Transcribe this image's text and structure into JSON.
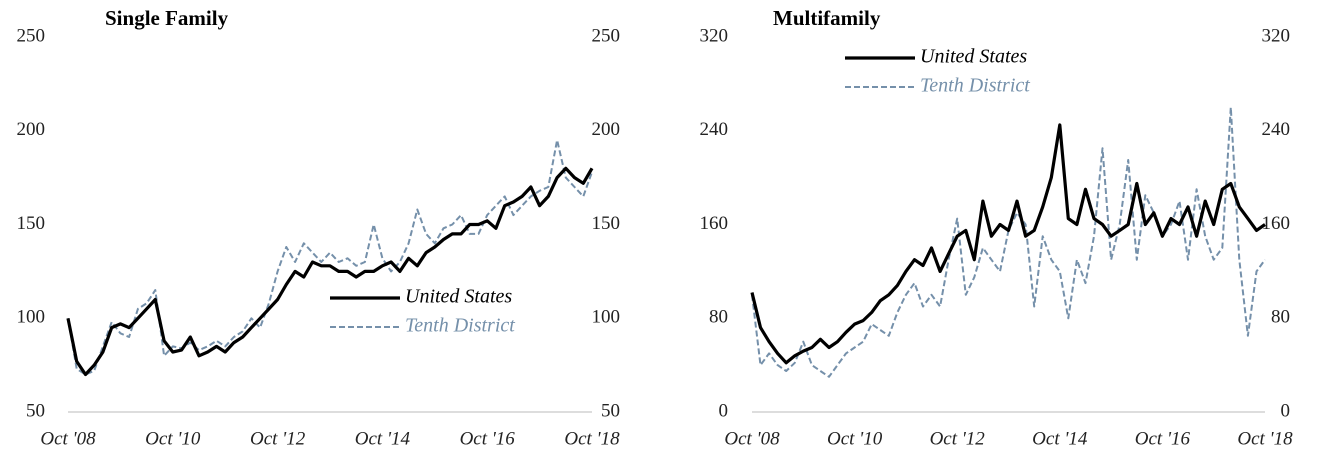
{
  "chart_data": [
    {
      "type": "line",
      "title": "Single Family",
      "categories": [
        "Oct '08",
        null,
        null,
        null,
        null,
        null,
        null,
        null,
        null,
        null,
        null,
        null,
        "Oct '10",
        null,
        null,
        null,
        null,
        null,
        null,
        null,
        null,
        null,
        null,
        null,
        "Oct '12",
        null,
        null,
        null,
        null,
        null,
        null,
        null,
        null,
        null,
        null,
        null,
        "Oct '14",
        null,
        null,
        null,
        null,
        null,
        null,
        null,
        null,
        null,
        null,
        null,
        "Oct '16",
        null,
        null,
        null,
        null,
        null,
        null,
        null,
        null,
        null,
        null,
        null,
        "Oct '18"
      ],
      "series": [
        {
          "name": "United States",
          "color": "#000000",
          "dash": false,
          "values": [
            100,
            77,
            70,
            75,
            82,
            95,
            97,
            95,
            100,
            105,
            110,
            88,
            82,
            83,
            90,
            80,
            82,
            85,
            82,
            87,
            90,
            95,
            100,
            105,
            110,
            118,
            125,
            122,
            130,
            128,
            128,
            125,
            125,
            122,
            125,
            125,
            128,
            130,
            125,
            132,
            128,
            135,
            138,
            142,
            145,
            145,
            150,
            150,
            152,
            148,
            160,
            162,
            165,
            170,
            160,
            165,
            175,
            180,
            175,
            172,
            180
          ]
        },
        {
          "name": "Tenth District",
          "color": "#7590aa",
          "dash": true,
          "values": [
            100,
            73,
            70,
            72,
            85,
            98,
            92,
            90,
            105,
            108,
            115,
            80,
            85,
            84,
            87,
            83,
            85,
            88,
            85,
            90,
            93,
            100,
            95,
            108,
            125,
            138,
            130,
            140,
            135,
            130,
            135,
            130,
            132,
            128,
            130,
            150,
            132,
            125,
            130,
            140,
            158,
            145,
            140,
            148,
            150,
            155,
            145,
            145,
            155,
            160,
            165,
            155,
            160,
            165,
            168,
            170,
            195,
            175,
            170,
            165,
            178
          ]
        }
      ],
      "ylim": [
        50,
        250
      ],
      "yticks": [
        50,
        100,
        150,
        200,
        250
      ],
      "y2lim": [
        50,
        250
      ],
      "y2ticks": [
        50,
        100,
        150,
        200,
        250
      ],
      "legend": "lower right",
      "grid": false
    },
    {
      "type": "line",
      "title": "Multifamily",
      "categories": [
        "Oct '08",
        null,
        null,
        null,
        null,
        null,
        null,
        null,
        null,
        null,
        null,
        null,
        "Oct '10",
        null,
        null,
        null,
        null,
        null,
        null,
        null,
        null,
        null,
        null,
        null,
        "Oct '12",
        null,
        null,
        null,
        null,
        null,
        null,
        null,
        null,
        null,
        null,
        null,
        "Oct '14",
        null,
        null,
        null,
        null,
        null,
        null,
        null,
        null,
        null,
        null,
        null,
        "Oct '16",
        null,
        null,
        null,
        null,
        null,
        null,
        null,
        null,
        null,
        null,
        null,
        "Oct '18"
      ],
      "series": [
        {
          "name": "United States",
          "color": "#000000",
          "dash": false,
          "values": [
            102,
            72,
            60,
            50,
            42,
            48,
            52,
            55,
            62,
            55,
            60,
            68,
            75,
            78,
            85,
            95,
            100,
            108,
            120,
            130,
            125,
            140,
            120,
            135,
            150,
            155,
            130,
            180,
            150,
            160,
            155,
            180,
            150,
            155,
            175,
            200,
            245,
            165,
            160,
            190,
            165,
            160,
            150,
            155,
            160,
            195,
            160,
            170,
            150,
            165,
            160,
            175,
            150,
            180,
            160,
            190,
            195,
            175,
            165,
            155,
            160
          ]
        },
        {
          "name": "Tenth District",
          "color": "#7590aa",
          "dash": true,
          "values": [
            100,
            40,
            50,
            40,
            35,
            42,
            60,
            40,
            35,
            30,
            40,
            50,
            55,
            60,
            75,
            70,
            65,
            85,
            100,
            110,
            90,
            100,
            90,
            130,
            165,
            100,
            115,
            140,
            130,
            120,
            155,
            170,
            160,
            90,
            150,
            130,
            120,
            80,
            130,
            110,
            150,
            225,
            130,
            160,
            215,
            130,
            185,
            170,
            150,
            160,
            180,
            130,
            190,
            150,
            130,
            140,
            260,
            130,
            65,
            120,
            130
          ]
        }
      ],
      "ylim": [
        0,
        320
      ],
      "yticks": [
        0,
        80,
        160,
        240,
        320
      ],
      "y2lim": [
        0,
        320
      ],
      "y2ticks": [
        0,
        80,
        160,
        240,
        320
      ],
      "legend": "upper left",
      "grid": false
    }
  ]
}
